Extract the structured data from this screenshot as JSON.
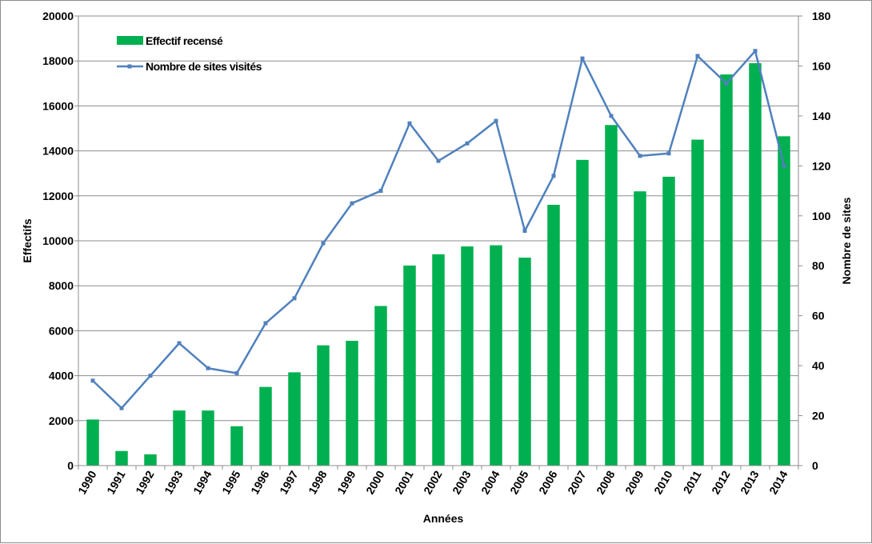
{
  "chart_data": {
    "type": "bar",
    "categories": [
      "1990",
      "1991",
      "1992",
      "1993",
      "1994",
      "1995",
      "1996",
      "1997",
      "1998",
      "1999",
      "2000",
      "2001",
      "2002",
      "2003",
      "2004",
      "2005",
      "2006",
      "2007",
      "2008",
      "2009",
      "2010",
      "2011",
      "2012",
      "2013",
      "2014"
    ],
    "series": [
      {
        "name": "Effectif recensé",
        "type": "bar",
        "axis": "left",
        "color": "#00b050",
        "values": [
          2050,
          650,
          500,
          2450,
          2450,
          1750,
          3500,
          4150,
          5350,
          5550,
          7100,
          8900,
          9400,
          9750,
          9800,
          9250,
          11600,
          13600,
          15150,
          12200,
          12850,
          14500,
          17400,
          17900,
          14650
        ]
      },
      {
        "name": "Nombre de sites visités",
        "type": "line",
        "axis": "right",
        "color": "#4f81bd",
        "values": [
          34,
          23,
          36,
          49,
          39,
          37,
          57,
          67,
          89,
          105,
          110,
          137,
          122,
          129,
          138,
          94,
          116,
          163,
          140,
          124,
          125,
          164,
          153,
          166,
          120
        ]
      }
    ],
    "xlabel": "Années",
    "ylabel": "Effectifs",
    "y2label": "Nombre de sites",
    "ylim": [
      0,
      20000
    ],
    "y2lim": [
      0,
      180
    ],
    "yticks": [
      "0",
      "2000",
      "4000",
      "6000",
      "8000",
      "10000",
      "12000",
      "14000",
      "16000",
      "18000",
      "20000"
    ],
    "y2ticks": [
      "0",
      "20",
      "40",
      "60",
      "80",
      "100",
      "120",
      "140",
      "160",
      "180"
    ],
    "grid": true,
    "legend_position": "top-left"
  }
}
